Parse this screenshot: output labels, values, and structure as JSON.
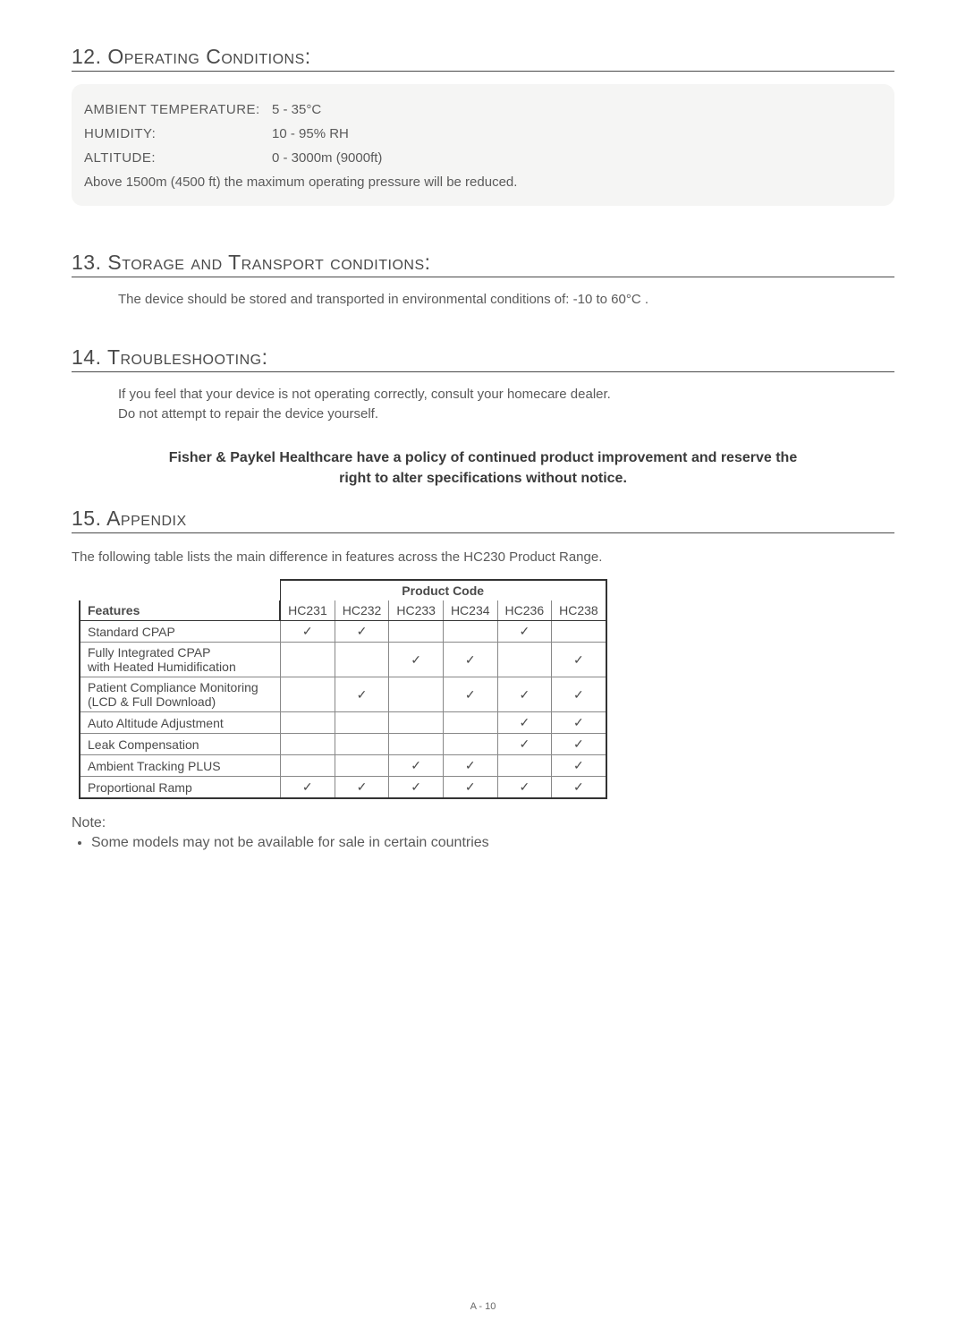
{
  "sections": {
    "operating": {
      "title": "12. Operating Conditions:",
      "specs": [
        {
          "label": "AMBIENT TEMPERATURE:",
          "value": "5 - 35°C"
        },
        {
          "label": "HUMIDITY:",
          "value": "10 - 95% RH"
        },
        {
          "label": "ALTITUDE:",
          "value": "0 - 3000m (9000ft)"
        }
      ],
      "note": "Above 1500m (4500 ft) the maximum operating pressure will be reduced."
    },
    "storage": {
      "title": "13. Storage and Transport conditions:",
      "body": "The  device should be stored and transported in environmental conditions of: -10 to 60°C ."
    },
    "troubleshoot": {
      "title": "14. Troubleshooting:",
      "line1": "If you feel that your device is not operating correctly, consult your homecare dealer.",
      "line2": "Do not attempt to repair the device yourself."
    },
    "policy": "Fisher & Paykel Healthcare have a policy of continued product improvement and reserve the right to alter specifications without notice.",
    "appendix": {
      "title": "15. Appendix",
      "intro": "The following table lists the main difference in features across the HC230 Product Range.",
      "tableHeader": {
        "product": "Product Code",
        "features": "Features"
      },
      "codes": [
        "HC231",
        "HC232",
        "HC233",
        "HC234",
        "HC236",
        "HC238"
      ],
      "rows": [
        {
          "feature": "Standard CPAP",
          "marks": [
            "✓",
            "✓",
            "",
            "",
            "✓",
            ""
          ]
        },
        {
          "feature": "Fully Integrated CPAP\nwith Heated Humidification",
          "marks": [
            "",
            "",
            "✓",
            "✓",
            "",
            "✓"
          ]
        },
        {
          "feature": "Patient Compliance Monitoring\n(LCD & Full Download)",
          "marks": [
            "",
            "✓",
            "",
            "✓",
            "✓",
            "✓"
          ]
        },
        {
          "feature": "Auto Altitude Adjustment",
          "marks": [
            "",
            "",
            "",
            "",
            "✓",
            "✓"
          ]
        },
        {
          "feature": "Leak Compensation",
          "marks": [
            "",
            "",
            "",
            "",
            "✓",
            "✓"
          ]
        },
        {
          "feature": "Ambient Tracking PLUS",
          "marks": [
            "",
            "",
            "✓",
            "✓",
            "",
            "✓"
          ]
        },
        {
          "feature": "Proportional Ramp",
          "marks": [
            "✓",
            "✓",
            "✓",
            "✓",
            "✓",
            "✓"
          ]
        }
      ],
      "noteLabel": "Note:",
      "noteItem": "Some models may not be available for sale in certain countries"
    }
  },
  "pageNumber": "A - 10",
  "style": {
    "pageWidth": 1080,
    "pageHeight": 1494,
    "checkmark": "✓",
    "colors": {
      "text": "#4a4a4a",
      "bodyText": "#5a5a5a",
      "boxBg": "#f5f5f4",
      "tableBorderDark": "#333333",
      "tableBorderLight": "#888888"
    }
  }
}
